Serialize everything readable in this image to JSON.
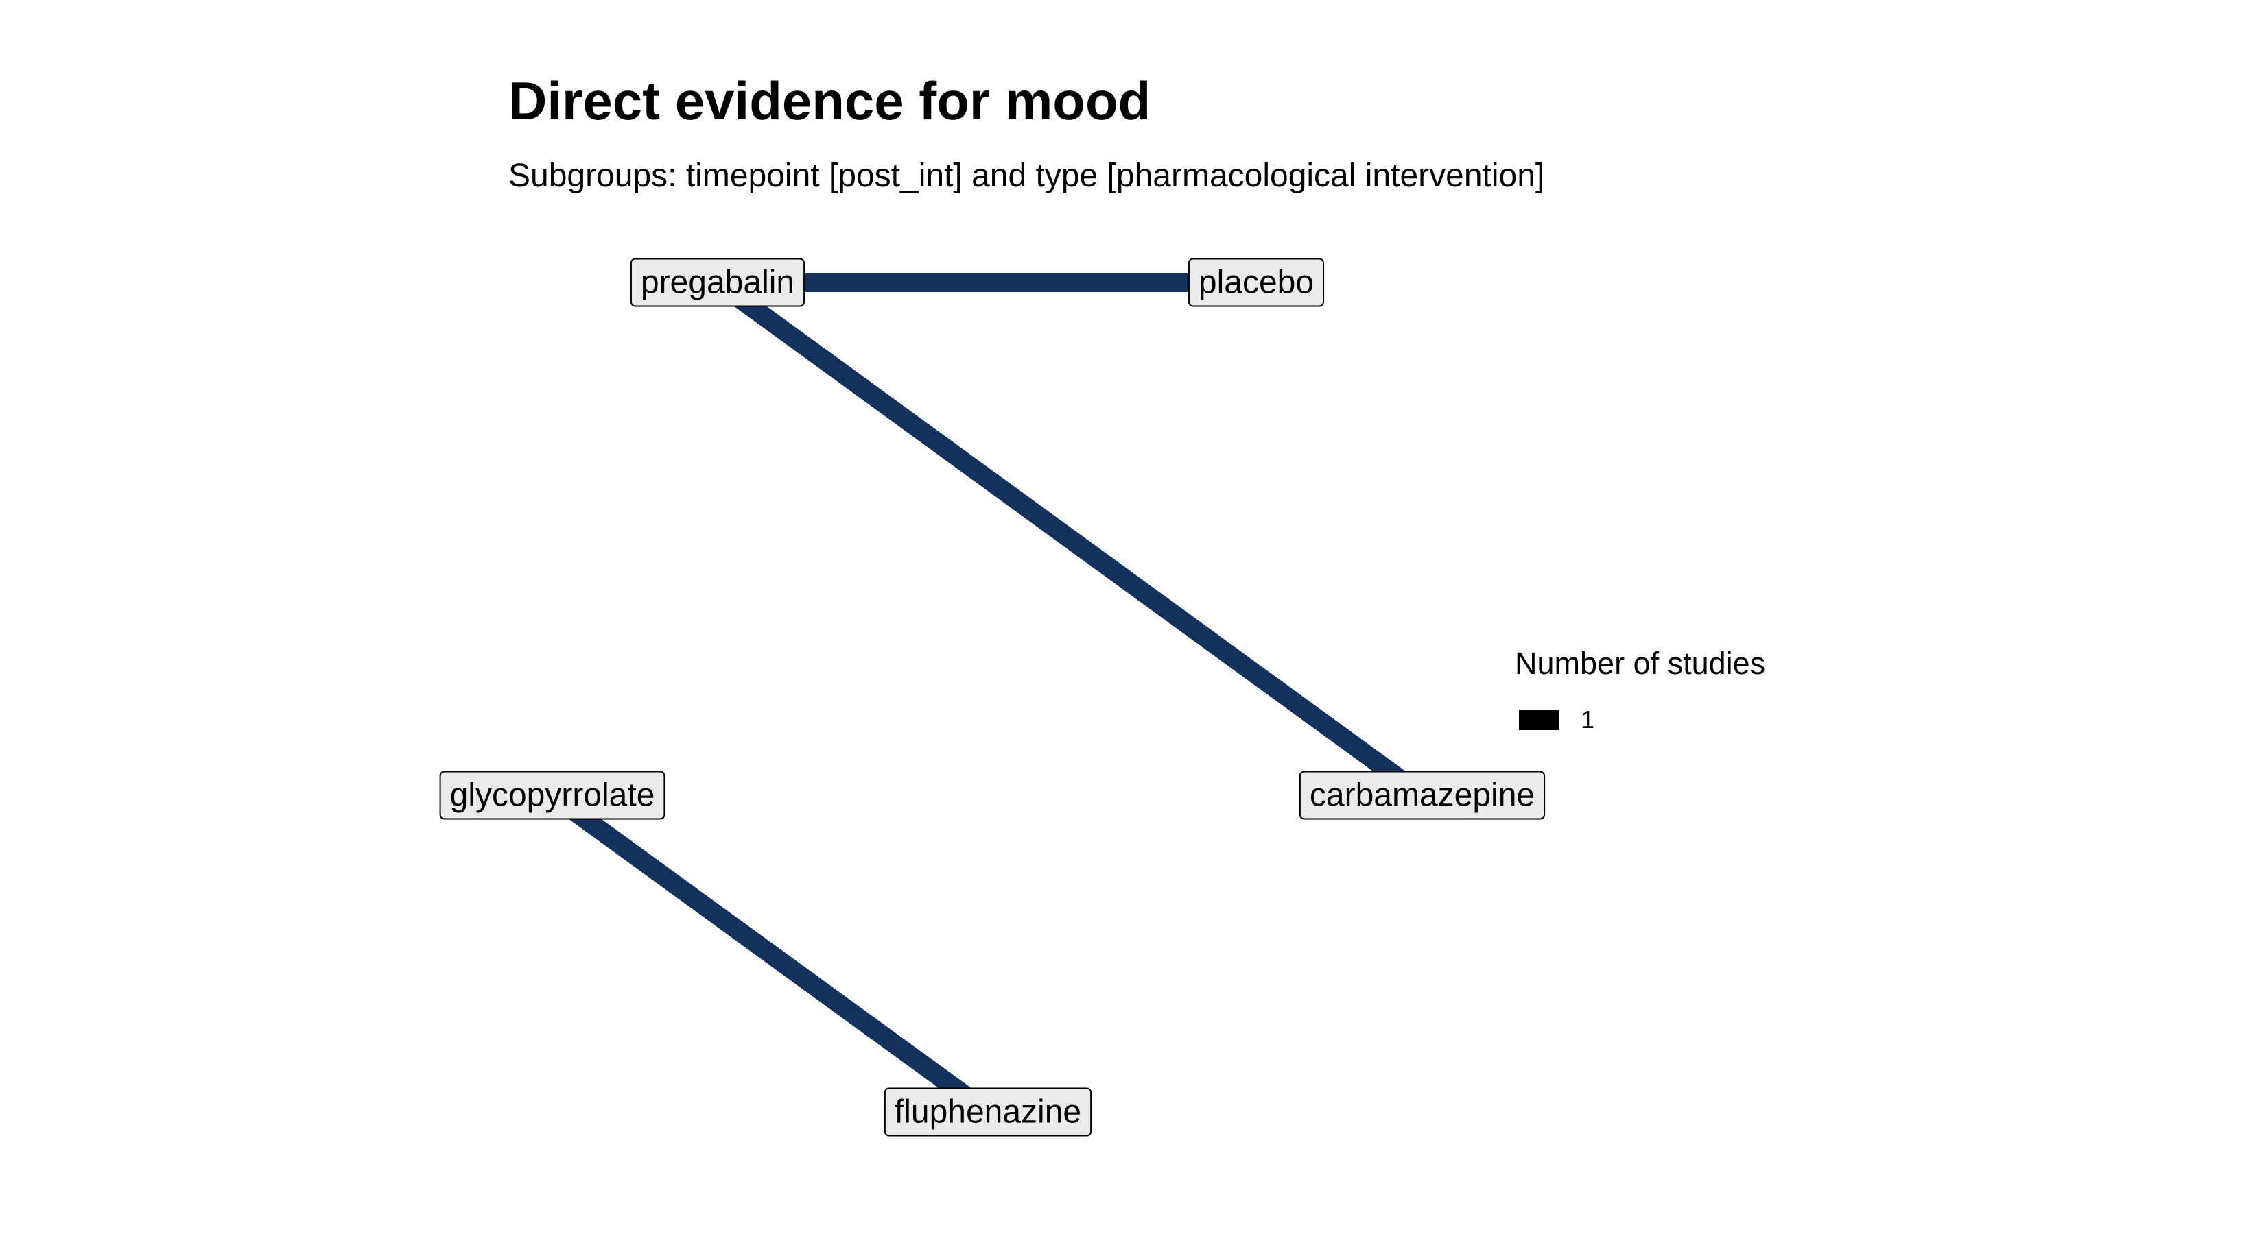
{
  "title": "Direct evidence for mood",
  "subtitle": "Subgroups: timepoint [post_int] and type [pharmacological intervention]",
  "colors": {
    "edge": "#13315c",
    "node_fill": "#ebebeb",
    "node_border": "#000000",
    "legend_key": "#000000"
  },
  "nodes": [
    {
      "id": "pregabalin",
      "label": "pregabalin"
    },
    {
      "id": "placebo",
      "label": "placebo"
    },
    {
      "id": "carbamazepine",
      "label": "carbamazepine"
    },
    {
      "id": "glycopyrrolate",
      "label": "glycopyrrolate"
    },
    {
      "id": "fluphenazine",
      "label": "fluphenazine"
    }
  ],
  "edges": [
    {
      "from": "pregabalin",
      "to": "placebo",
      "studies": 1
    },
    {
      "from": "pregabalin",
      "to": "carbamazepine",
      "studies": 1
    },
    {
      "from": "glycopyrrolate",
      "to": "fluphenazine",
      "studies": 1
    }
  ],
  "legend": {
    "title": "Number of studies",
    "items": [
      {
        "label": "1"
      }
    ]
  }
}
